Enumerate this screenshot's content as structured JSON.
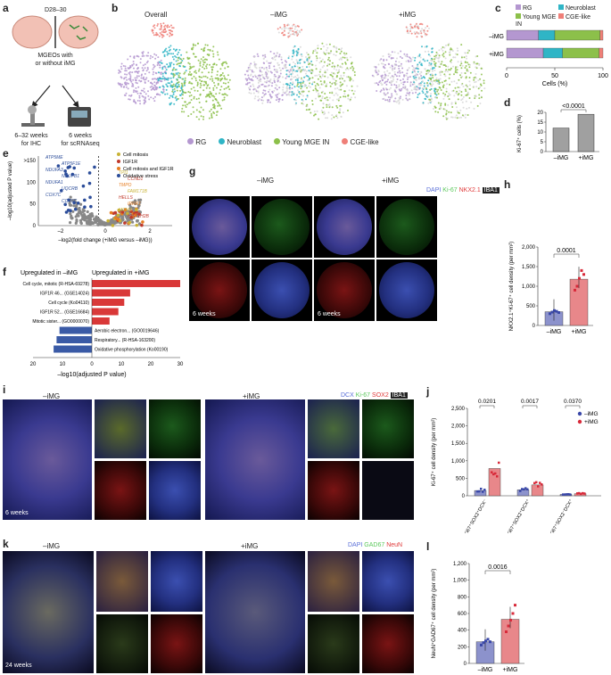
{
  "panels": {
    "a": {
      "label": "a",
      "stage": "D28–30",
      "mgeo": "MGEOs with\nor without iMG",
      "left": "6–32 weeks\nfor IHC",
      "right": "6 weeks\nfor scRNAseq"
    },
    "b": {
      "label": "b",
      "titles": [
        "Overall",
        "–iMG",
        "+iMG"
      ],
      "legend": [
        {
          "name": "RG",
          "color": "#b497d0"
        },
        {
          "name": "Neuroblast",
          "color": "#2fb5c6"
        },
        {
          "name": "Young MGE IN",
          "color": "#8cc04a"
        },
        {
          "name": "CGE-like",
          "color": "#ef7f78"
        }
      ]
    },
    "c": {
      "label": "c",
      "xlabel": "Cells (%)",
      "ticks": [
        "0",
        "50",
        "100"
      ]
    },
    "d": {
      "label": "d",
      "ylabel": "Ki-67⁺ cells (%)",
      "p": "<0.0001",
      "ticks": [
        "0",
        "5",
        "10",
        "15",
        "20"
      ],
      "cats": [
        "–iMG",
        "+iMG"
      ]
    },
    "e": {
      "label": "e",
      "ylabel": "–log10(adjusted P value)",
      "xlabel": "–log2(fold change (+iMG versus –iMG))",
      "top": ">150",
      "yticks": [
        "0",
        "50",
        "100"
      ],
      "xticks": [
        "–2",
        "0",
        "2"
      ],
      "legend": [
        {
          "name": "Cell mitosis",
          "color": "#c8b235"
        },
        {
          "name": "IGF1R",
          "color": "#c0392b"
        },
        {
          "name": "Cell mitosis and IGF1R",
          "color": "#e67e22"
        },
        {
          "name": "Oxidative stress",
          "color": "#2c4d9a"
        }
      ],
      "genes_left": [
        "ATP5ME",
        "ATP5F1E",
        "NDUFA3",
        "NDUFB1",
        "NDUFA1",
        "UQCRB",
        "COX7C",
        "COX6C"
      ],
      "genes_right": [
        "TPI1",
        "CCND1",
        "TMPO",
        "FAM171B",
        "HELLS",
        "IRRR1",
        "MCM3",
        "HIST1H2B"
      ]
    },
    "f": {
      "label": "f",
      "left_title": "Upregulated in –iMG",
      "right_title": "Upregulated in +iMG",
      "xlabel": "–log10(adjusted P value)",
      "ticks": [
        "20",
        "10",
        "0",
        "10",
        "20",
        "30"
      ],
      "terms_up": [
        "Cell cycle, mitotic (R-HSA-69278)",
        "IGF1R 46... (GSE14024)",
        "Cell cycle (Ko04110)",
        "IGF1R 52... (GSE16684)",
        "Mitotic sister... (GO0000070)"
      ],
      "terms_down": [
        "Aerobic electron... (GO0019646)",
        "Respiratory... (R-HSA-163200)",
        "Oxidative phosphorylation (Ko00190)"
      ]
    },
    "g": {
      "label": "g",
      "left": "–iMG",
      "right": "+iMG",
      "stains": [
        "DAPI",
        "Ki-67",
        "NKX2.1",
        "IBA1"
      ],
      "time": "6 weeks"
    },
    "h": {
      "label": "h",
      "ylabel": "NKX2.1⁺Ki-67⁺ cell density (per mm²)",
      "p": "0.0001",
      "ticks": [
        "0",
        "500",
        "1,000",
        "1,500",
        "2,000"
      ],
      "cats": [
        "–iMG",
        "+iMG"
      ]
    },
    "i": {
      "label": "i",
      "left": "–iMG",
      "right": "+iMG",
      "stains": [
        "DCX",
        "Ki-67",
        "SOX2",
        "IBA1"
      ],
      "time": "6 weeks"
    },
    "j": {
      "label": "j",
      "ylabel": "Ki-67⁺ cell density (per mm²)",
      "ticks": [
        "0",
        "500",
        "1,000",
        "1,500",
        "2,000",
        "2,500"
      ],
      "pvals": [
        "0.0201",
        "0.0017",
        "0.0370"
      ],
      "groups": [
        "Ki67⁺SOX2⁺DCX⁻",
        "Ki67⁺SOX2⁺DCX⁺",
        "Ki67⁺SOX2⁻DCX⁺"
      ],
      "legend": [
        "–iMG",
        "+iMG"
      ]
    },
    "k": {
      "label": "k",
      "left": "–iMG",
      "right": "+iMG",
      "stains": [
        "DAPI",
        "GAD67",
        "NeuN"
      ],
      "time": "24 weeks"
    },
    "l": {
      "label": "l",
      "ylabel": "NeuN⁺GAD67⁺ cell density (per mm²)",
      "p": "0.0016",
      "ticks": [
        "0",
        "200",
        "400",
        "600",
        "800",
        "1,000",
        "1,200"
      ],
      "cats": [
        "–iMG",
        "+iMG"
      ]
    }
  },
  "chart_data": [
    {
      "type": "bar",
      "panel": "c",
      "orientation": "horizontal",
      "stacked": true,
      "categories": [
        "–iMG",
        "+iMG"
      ],
      "series": [
        {
          "name": "RG",
          "values": [
            33,
            38
          ]
        },
        {
          "name": "Neuroblast",
          "values": [
            17,
            20
          ]
        },
        {
          "name": "Young MGE IN",
          "values": [
            47,
            38
          ]
        },
        {
          "name": "CGE-like",
          "values": [
            3,
            4
          ]
        }
      ],
      "xlim": [
        0,
        100
      ]
    },
    {
      "type": "bar",
      "panel": "d",
      "categories": [
        "–iMG",
        "+iMG"
      ],
      "values": [
        12,
        19
      ],
      "ylim": [
        0,
        20
      ]
    },
    {
      "type": "bar",
      "panel": "h",
      "categories": [
        "–iMG",
        "+iMG"
      ],
      "values": [
        350,
        1180
      ],
      "points": [
        [
          300,
          340,
          380,
          360,
          330
        ],
        [
          900,
          1000,
          1200,
          1400,
          1300
        ]
      ],
      "ylim": [
        0,
        2000
      ]
    },
    {
      "type": "bar",
      "panel": "j",
      "categories": [
        "Ki67⁺SOX2⁺DCX⁻",
        "Ki67⁺SOX2⁺DCX⁺",
        "Ki67⁺SOX2⁻DCX⁺"
      ],
      "series": [
        {
          "name": "–iMG",
          "values": [
            150,
            170,
            40
          ]
        },
        {
          "name": "+iMG",
          "values": [
            780,
            310,
            60
          ]
        }
      ],
      "ylim": [
        0,
        2500
      ]
    },
    {
      "type": "bar",
      "panel": "l",
      "categories": [
        "–iMG",
        "+iMG"
      ],
      "values": [
        260,
        530
      ],
      "points": [
        [
          220,
          250,
          270,
          290,
          260
        ],
        [
          380,
          450,
          520,
          600,
          700
        ]
      ],
      "ylim": [
        0,
        1200
      ]
    },
    {
      "type": "bar",
      "panel": "f",
      "orientation": "horizontal",
      "categories": [
        "Cell cycle, mitotic (R-HSA-69278)",
        "IGF1R 46... (GSE14024)",
        "Cell cycle (Ko04110)",
        "IGF1R 52... (GSE16684)",
        "Mitotic sister... (GO0000070)",
        "Aerobic electron... (GO0019646)",
        "Respiratory... (R-HSA-163200)",
        "Oxidative phosphorylation (Ko00190)"
      ],
      "values": [
        30,
        13,
        11,
        9,
        6,
        -11,
        -12,
        -13
      ]
    }
  ]
}
